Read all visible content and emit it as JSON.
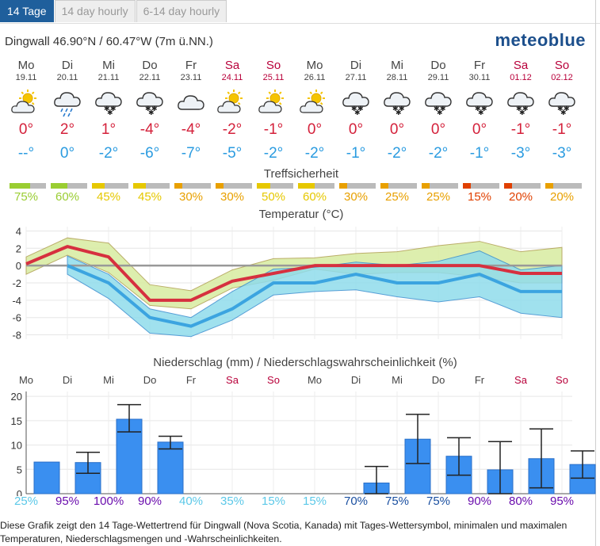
{
  "tabs": [
    {
      "label": "14 Tage"
    },
    {
      "label": "14 day hourly"
    },
    {
      "label": "6-14 day hourly"
    }
  ],
  "location": "Dingwall  46.90°N / 60.47°W (7m ü.NN.)",
  "brand": "meteoblue",
  "days": [
    {
      "name": "Mo",
      "date": "19.11",
      "weekend": false,
      "icon": "sun-cloud-icon",
      "tmax": "0°",
      "tmin": "--°",
      "conf_pct": "75%",
      "conf_color": "#9acd32",
      "precip_pct": "25%",
      "pct_color": "#5bc8e8",
      "precip": 6.5,
      "emin": null,
      "emax": null
    },
    {
      "name": "Di",
      "date": "20.11",
      "weekend": false,
      "icon": "rain-cloud-icon",
      "tmax": "2°",
      "tmin": "0°",
      "conf_pct": "60%",
      "conf_color": "#9acd32",
      "precip_pct": "95%",
      "pct_color": "#6a0dad",
      "precip": 6.4,
      "emin": 4.2,
      "emax": 8.5
    },
    {
      "name": "Mi",
      "date": "21.11",
      "weekend": false,
      "icon": "snow-cloud-icon",
      "tmax": "1°",
      "tmin": "-2°",
      "conf_pct": "45%",
      "conf_color": "#e6c800",
      "precip_pct": "100%",
      "pct_color": "#6a0dad",
      "precip": 15.3,
      "emin": 12.7,
      "emax": 18.3
    },
    {
      "name": "Do",
      "date": "22.11",
      "weekend": false,
      "icon": "snow-cloud-icon",
      "tmax": "-4°",
      "tmin": "-6°",
      "conf_pct": "45%",
      "conf_color": "#e6c800",
      "precip_pct": "90%",
      "pct_color": "#6a0dad",
      "precip": 10.6,
      "emin": 9.2,
      "emax": 11.8
    },
    {
      "name": "Fr",
      "date": "23.11",
      "weekend": false,
      "icon": "cloud-icon",
      "tmax": "-4°",
      "tmin": "-7°",
      "conf_pct": "30%",
      "conf_color": "#e8a000",
      "precip_pct": "40%",
      "pct_color": "#5bc8e8",
      "precip": 0,
      "emin": null,
      "emax": null
    },
    {
      "name": "Sa",
      "date": "24.11",
      "weekend": true,
      "icon": "sun-cloud-icon",
      "tmax": "-2°",
      "tmin": "-5°",
      "conf_pct": "30%",
      "conf_color": "#e8a000",
      "precip_pct": "35%",
      "pct_color": "#5bc8e8",
      "precip": 0,
      "emin": null,
      "emax": null
    },
    {
      "name": "So",
      "date": "25.11",
      "weekend": true,
      "icon": "sun-cloud-icon",
      "tmax": "-1°",
      "tmin": "-2°",
      "conf_pct": "50%",
      "conf_color": "#e6c800",
      "precip_pct": "15%",
      "pct_color": "#5bc8e8",
      "precip": 0,
      "emin": null,
      "emax": null
    },
    {
      "name": "Mo",
      "date": "26.11",
      "weekend": false,
      "icon": "sun-cloud-icon",
      "tmax": "0°",
      "tmin": "-2°",
      "conf_pct": "60%",
      "conf_color": "#e6c800",
      "precip_pct": "15%",
      "pct_color": "#5bc8e8",
      "precip": 0,
      "emin": null,
      "emax": null
    },
    {
      "name": "Di",
      "date": "27.11",
      "weekend": false,
      "icon": "snow-cloud-icon",
      "tmax": "0°",
      "tmin": "-1°",
      "conf_pct": "30%",
      "conf_color": "#e8a000",
      "precip_pct": "70%",
      "pct_color": "#1a4fa0",
      "precip": 2.2,
      "emin": 0,
      "emax": 5.6
    },
    {
      "name": "Mi",
      "date": "28.11",
      "weekend": false,
      "icon": "snow-cloud-icon",
      "tmax": "0°",
      "tmin": "-2°",
      "conf_pct": "25%",
      "conf_color": "#e8a000",
      "precip_pct": "75%",
      "pct_color": "#1a4fa0",
      "precip": 11.2,
      "emin": 6.2,
      "emax": 16.3
    },
    {
      "name": "Do",
      "date": "29.11",
      "weekend": false,
      "icon": "snow-cloud-icon",
      "tmax": "0°",
      "tmin": "-2°",
      "conf_pct": "25%",
      "conf_color": "#e8a000",
      "precip_pct": "75%",
      "pct_color": "#1a4fa0",
      "precip": 7.7,
      "emin": 3.8,
      "emax": 11.5
    },
    {
      "name": "Fr",
      "date": "30.11",
      "weekend": false,
      "icon": "snow-cloud-icon",
      "tmax": "0°",
      "tmin": "-1°",
      "conf_pct": "15%",
      "conf_color": "#e04000",
      "precip_pct": "90%",
      "pct_color": "#6a0dad",
      "precip": 4.9,
      "emin": 0,
      "emax": 10.7
    },
    {
      "name": "Sa",
      "date": "01.12",
      "weekend": true,
      "icon": "snow-cloud-icon",
      "tmax": "-1°",
      "tmin": "-3°",
      "conf_pct": "20%",
      "conf_color": "#e04000",
      "precip_pct": "80%",
      "pct_color": "#6a0dad",
      "precip": 7.2,
      "emin": 1.2,
      "emax": 13.3
    },
    {
      "name": "So",
      "date": "02.12",
      "weekend": true,
      "icon": "snow-cloud-icon",
      "tmax": "-1°",
      "tmin": "-3°",
      "conf_pct": "20%",
      "conf_color": "#e8a000",
      "precip_pct": "95%",
      "pct_color": "#6a0dad",
      "precip": 6.0,
      "emin": 3.2,
      "emax": 8.8
    }
  ],
  "confidence_title": "Treffsicherheit",
  "temp_title": "Temperatur (°C)",
  "precip_title": "Niederschlag (mm) / Niederschlagswahrscheinlichkeit (%)",
  "footer": "Diese Grafik zeigt den 14 Tage-Wettertrend für Dingwall (Nova Scotia, Kanada) mit Tages-Wettersymbol, minimalen und maximalen Temperaturen, Niederschlagsmengen und -Wahrscheinlichkeiten.",
  "chart_data": [
    {
      "type": "line",
      "title": "Temperatur (°C)",
      "categories": [
        "19.11",
        "20.11",
        "21.11",
        "22.11",
        "23.11",
        "24.11",
        "25.11",
        "26.11",
        "27.11",
        "28.11",
        "29.11",
        "30.11",
        "01.12",
        "02.12"
      ],
      "ylim": [
        -8.5,
        4.5
      ],
      "yticks": [
        4,
        2,
        0,
        -2,
        -4,
        -6,
        -8
      ],
      "series": [
        {
          "name": "max",
          "color": "#d6303f",
          "values": [
            0.2,
            2.2,
            1.0,
            -4.0,
            -4.0,
            -1.8,
            -0.9,
            0.0,
            0.0,
            0.0,
            0.0,
            0.0,
            -0.9,
            -0.9
          ]
        },
        {
          "name": "min",
          "color": "#3ba4e0",
          "values": [
            null,
            0.0,
            -2.0,
            -6.0,
            -7.0,
            -5.0,
            -2.0,
            -2.0,
            -1.0,
            -2.0,
            -2.0,
            -1.0,
            -3.0,
            -3.0
          ]
        },
        {
          "name": "max_upper",
          "values": [
            1.0,
            3.2,
            2.6,
            -2.2,
            -2.9,
            -0.5,
            0.8,
            0.9,
            1.4,
            1.6,
            2.3,
            2.8,
            1.6,
            2.1
          ]
        },
        {
          "name": "max_lower",
          "values": [
            -1.0,
            1.2,
            -0.8,
            -4.6,
            -5.0,
            -2.6,
            -1.7,
            -0.4,
            -1.0,
            -0.8,
            -0.8,
            -1.3,
            -2.0,
            -2.0
          ]
        },
        {
          "name": "min_upper",
          "values": [
            null,
            1.1,
            -1.0,
            -5.0,
            -6.0,
            -3.0,
            -0.4,
            -0.2,
            0.4,
            0.0,
            0.5,
            1.7,
            -0.5,
            0.0
          ]
        },
        {
          "name": "min_lower",
          "values": [
            null,
            -1.0,
            -3.8,
            -7.8,
            -8.2,
            -6.3,
            -3.4,
            -3.0,
            -2.8,
            -3.6,
            -4.2,
            -3.6,
            -5.5,
            -6.0
          ]
        }
      ]
    },
    {
      "type": "bar",
      "title": "Niederschlag (mm) / Niederschlagswahrscheinlichkeit (%)",
      "categories": [
        "Mo",
        "Di",
        "Mi",
        "Do",
        "Fr",
        "Sa",
        "So",
        "Mo",
        "Di",
        "Mi",
        "Do",
        "Fr",
        "Sa",
        "So"
      ],
      "values": [
        6.5,
        6.4,
        15.3,
        10.6,
        0,
        0,
        0,
        0,
        2.2,
        11.2,
        7.7,
        4.9,
        7.2,
        6.0
      ],
      "probability_pct": [
        25,
        95,
        100,
        90,
        40,
        35,
        15,
        15,
        70,
        75,
        75,
        90,
        80,
        95
      ],
      "ylim": [
        0,
        21
      ],
      "yticks": [
        0,
        5,
        10,
        15,
        20
      ]
    }
  ]
}
